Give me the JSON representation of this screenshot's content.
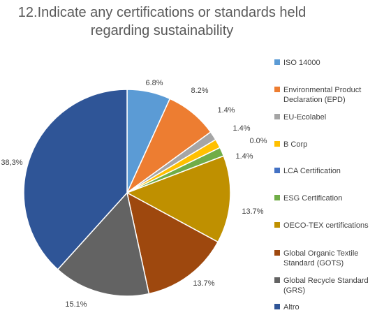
{
  "chart_data": {
    "type": "pie",
    "title_lines": [
      "12.Indicate any certifications or standards held",
      "regarding sustainability"
    ],
    "legend_position": "right",
    "slices": [
      {
        "label_lines": [
          "ISO 14000"
        ],
        "value": 6.8,
        "value_label": "6.8%",
        "color": "#5B9BD5"
      },
      {
        "label_lines": [
          "Environmental Product",
          "Declaration (EPD)"
        ],
        "value": 8.2,
        "value_label": "8.2%",
        "color": "#ED7D31"
      },
      {
        "label_lines": [
          "EU-Ecolabel"
        ],
        "value": 1.4,
        "value_label": "1.4%",
        "color": "#A5A5A5"
      },
      {
        "label_lines": [
          "B Corp"
        ],
        "value": 1.4,
        "value_label": "1.4%",
        "color": "#FFC000"
      },
      {
        "label_lines": [
          "LCA Certification"
        ],
        "value": 0.0,
        "value_label": "0.0%",
        "color": "#4472C4"
      },
      {
        "label_lines": [
          "ESG Certification"
        ],
        "value": 1.4,
        "value_label": "1.4%",
        "color": "#70AD47"
      },
      {
        "label_lines": [
          "OECO-TEX certifications"
        ],
        "value": 13.7,
        "value_label": "13.7%",
        "color": "#BF9000"
      },
      {
        "label_lines": [
          "Global Organic Textile",
          "Standard (GOTS)"
        ],
        "value": 13.7,
        "value_label": "13.7%",
        "color": "#9E480E"
      },
      {
        "label_lines": [
          "Global Recycle Standard",
          "(GRS)"
        ],
        "value": 15.1,
        "value_label": "15.1%",
        "color": "#636363"
      },
      {
        "label_lines": [
          "Altro"
        ],
        "value": 38.3,
        "value_label": "38,3%",
        "color": "#2F5597"
      }
    ]
  }
}
